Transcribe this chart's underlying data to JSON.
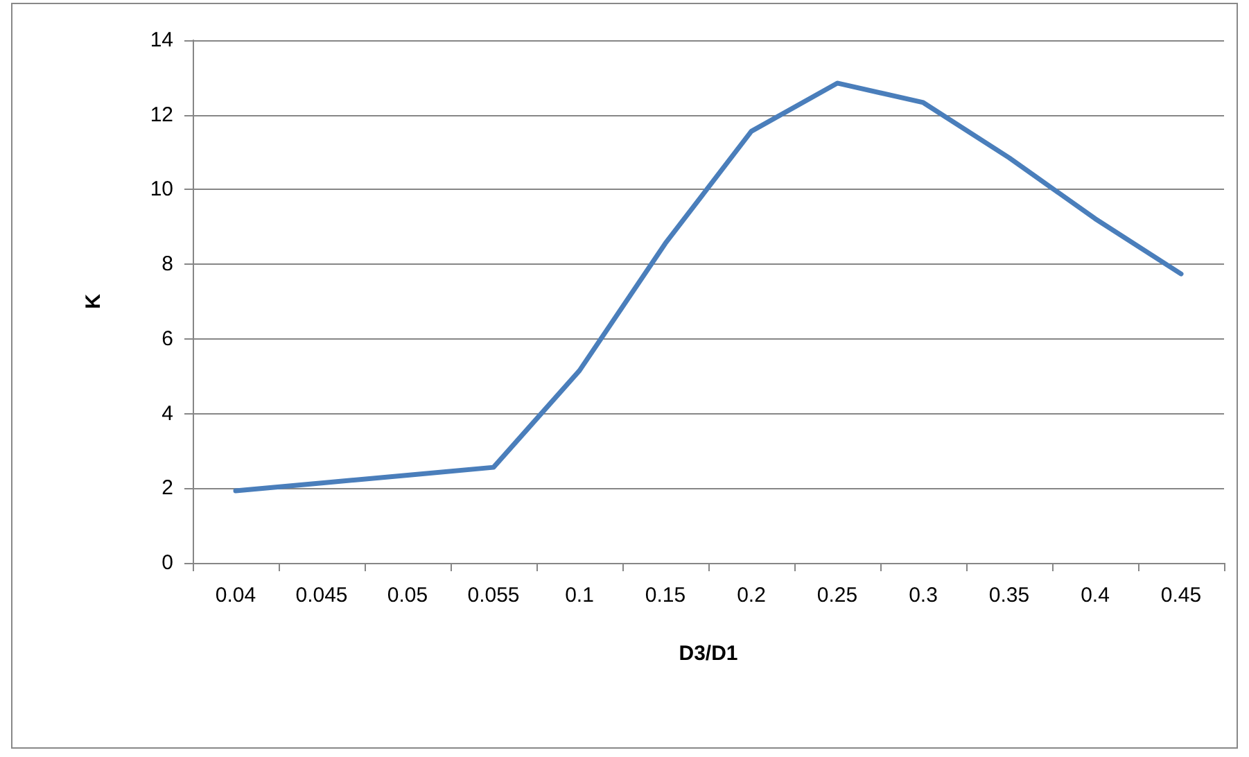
{
  "chart_data": {
    "type": "line",
    "xlabel": "D3/D1",
    "ylabel": "K",
    "categories": [
      "0.04",
      "0.045",
      "0.05",
      "0.055",
      "0.1",
      "0.15",
      "0.2",
      "0.25",
      "0.3",
      "0.35",
      "0.4",
      "0.45"
    ],
    "series": [
      {
        "color": "#4a7ebb",
        "values": [
          1.93,
          2.14,
          2.35,
          2.56,
          5.15,
          8.56,
          11.56,
          12.85,
          12.33,
          10.85,
          9.22,
          7.74
        ]
      }
    ],
    "ylim": [
      0,
      14
    ],
    "yticks": [
      0,
      2,
      4,
      6,
      8,
      10,
      12,
      14
    ],
    "grid": "y",
    "marker": "none",
    "line_style": "solid"
  }
}
